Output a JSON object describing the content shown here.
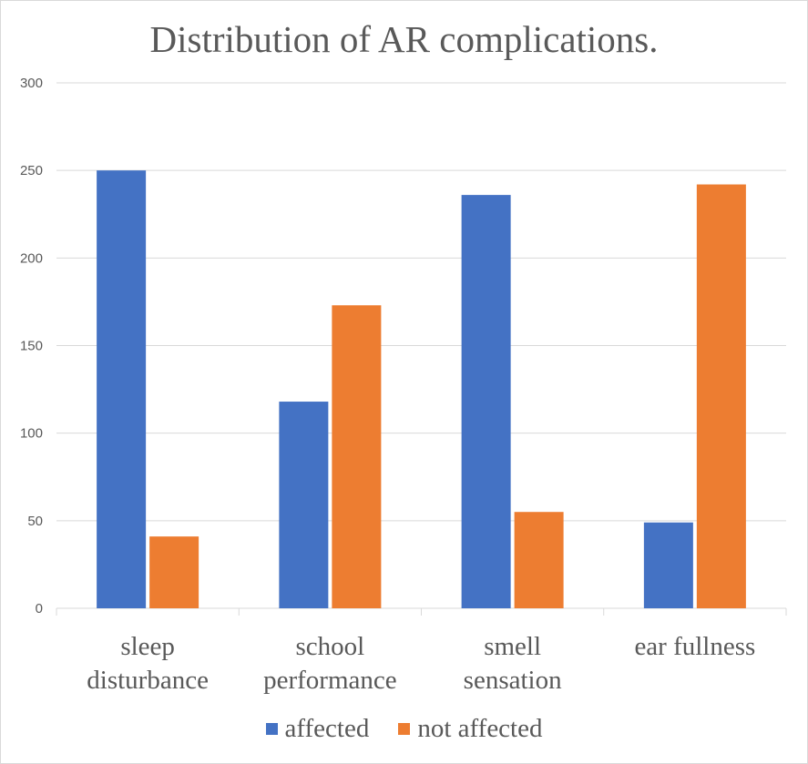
{
  "chart_data": {
    "type": "bar",
    "title": "Distribution of AR complications.",
    "categories": [
      [
        "sleep",
        "disturbance"
      ],
      [
        "school",
        "performance"
      ],
      [
        "smell",
        "sensation"
      ],
      [
        "ear fullness"
      ]
    ],
    "series": [
      {
        "name": "affected",
        "color": "#4472C4",
        "values": [
          250,
          118,
          236,
          49
        ]
      },
      {
        "name": "not affected",
        "color": "#ED7D31",
        "values": [
          41,
          173,
          55,
          242
        ]
      }
    ],
    "ylim": [
      0,
      300
    ],
    "yticks": [
      0,
      50,
      100,
      150,
      200,
      250,
      300
    ],
    "grid": true,
    "legend_position": "bottom",
    "gridline_color": "#d9d9d9"
  }
}
